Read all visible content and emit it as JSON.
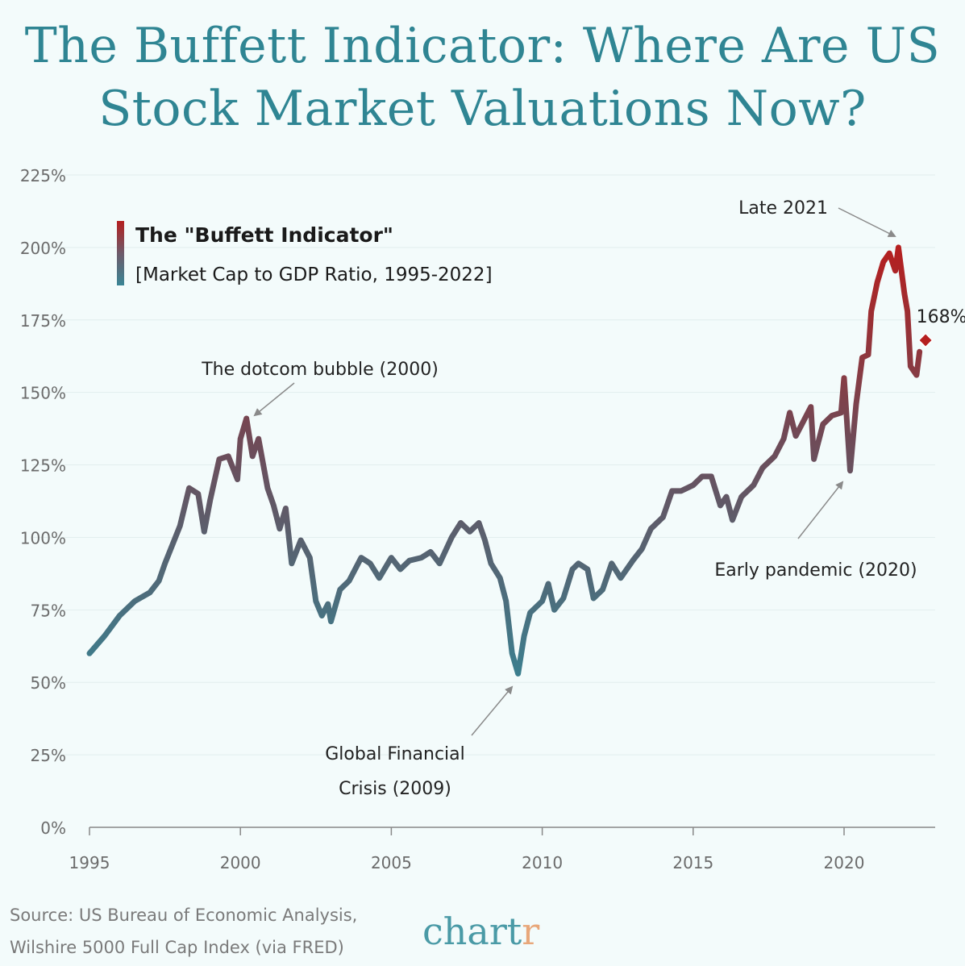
{
  "title_line1": "The Buffett Indicator: Where Are US",
  "title_line2": "Stock Market Valuations Now?",
  "source_line1": "Source: US Bureau of Economic Analysis,",
  "source_line2": "Wilshire 5000 Full Cap Index (via FRED)",
  "logo_text": "chart",
  "logo_accent": "r",
  "chart_data": {
    "type": "line",
    "title": "",
    "legend_title": "The \"Buffett Indicator\"",
    "legend_subtitle": "[Market Cap to GDP Ratio, 1995-2022]",
    "legend_placement": "top-left",
    "xlim": [
      1995,
      2022.9
    ],
    "ylim": [
      0,
      225
    ],
    "x_ticks": [
      1995,
      2000,
      2005,
      2010,
      2015,
      2020
    ],
    "x_tick_labels": [
      "1995",
      "2000",
      "2005",
      "2010",
      "2015",
      "2020"
    ],
    "y_ticks": [
      0,
      25,
      50,
      75,
      100,
      125,
      150,
      175,
      200,
      225
    ],
    "y_tick_labels": [
      "0%",
      "25%",
      "50%",
      "75%",
      "100%",
      "125%",
      "150%",
      "175%",
      "200%",
      "225%"
    ],
    "grid": "horizontal",
    "colors": {
      "low": "#3a8090",
      "mid": "#6e4b58",
      "high": "#b51f1f",
      "title": "#2f8593"
    },
    "series": [
      {
        "x": [
          1995.0,
          1995.5,
          1996.0,
          1996.5,
          1997.0,
          1997.3,
          1997.5,
          1998.0,
          1998.3,
          1998.6,
          1998.8,
          1999.0,
          1999.3,
          1999.6,
          1999.9,
          2000.0,
          2000.2,
          2000.4,
          2000.6,
          2000.9,
          2001.1,
          2001.3,
          2001.5,
          2001.7,
          2002.0,
          2002.3,
          2002.5,
          2002.7,
          2002.9,
          2003.0,
          2003.3,
          2003.6,
          2004.0,
          2004.3,
          2004.6,
          2005.0,
          2005.3,
          2005.6,
          2006.0,
          2006.3,
          2006.6,
          2007.0,
          2007.3,
          2007.6,
          2007.9,
          2008.1,
          2008.3,
          2008.6,
          2008.8,
          2009.0,
          2009.2,
          2009.4,
          2009.6,
          2010.0,
          2010.2,
          2010.4,
          2010.7,
          2011.0,
          2011.2,
          2011.5,
          2011.7,
          2012.0,
          2012.3,
          2012.6,
          2013.0,
          2013.3,
          2013.6,
          2014.0,
          2014.3,
          2014.6,
          2015.0,
          2015.3,
          2015.6,
          2015.9,
          2016.1,
          2016.3,
          2016.6,
          2017.0,
          2017.3,
          2017.7,
          2018.0,
          2018.2,
          2018.4,
          2018.6,
          2018.9,
          2019.0,
          2019.3,
          2019.6,
          2019.9,
          2020.0,
          2020.2,
          2020.4,
          2020.6,
          2020.8,
          2020.9,
          2021.1,
          2021.3,
          2021.5,
          2021.7,
          2021.8,
          2022.0,
          2022.1,
          2022.2,
          2022.4,
          2022.5
        ],
        "y": [
          60,
          66,
          73,
          78,
          81,
          85,
          91,
          104,
          117,
          115,
          102,
          113,
          127,
          128,
          120,
          134,
          141,
          128,
          134,
          117,
          111,
          103,
          110,
          91,
          99,
          93,
          78,
          73,
          77,
          71,
          82,
          85,
          93,
          91,
          86,
          93,
          89,
          92,
          93,
          95,
          91,
          100,
          105,
          102,
          105,
          99,
          91,
          86,
          78,
          60,
          53,
          66,
          74,
          78,
          84,
          75,
          79,
          89,
          91,
          89,
          79,
          82,
          91,
          86,
          92,
          96,
          103,
          107,
          116,
          116,
          118,
          121,
          121,
          111,
          114,
          106,
          114,
          118,
          124,
          128,
          134,
          143,
          135,
          139,
          145,
          127,
          139,
          142,
          143,
          155,
          123,
          146,
          162,
          163,
          178,
          188,
          195,
          198,
          192,
          200,
          184,
          178,
          159,
          156,
          164
        ]
      }
    ],
    "latest_point": {
      "x": 2022.7,
      "y": 168,
      "label": "168%"
    },
    "annotations": [
      {
        "text": "The dotcom bubble (2000)",
        "x": 2000.2,
        "y": 141
      },
      {
        "text": "Global Financial",
        "text2": "Crisis (2009)",
        "x": 2009.2,
        "y": 53
      },
      {
        "text": "Early pandemic (2020)",
        "x": 2020.2,
        "y": 123
      },
      {
        "text": "Late 2021",
        "x": 2021.8,
        "y": 200
      }
    ]
  }
}
